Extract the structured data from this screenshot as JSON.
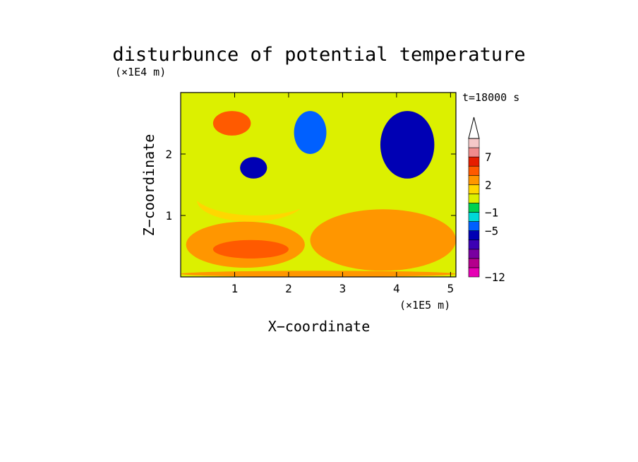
{
  "chart_data": {
    "type": "heatmap",
    "title": "disturbunce of potential temperature",
    "time_label": "t=18000 s",
    "xlabel": "X−coordinate",
    "ylabel": "Z−coordinate",
    "x_unit": "(×1E5 m)",
    "y_unit": "(×1E4 m)",
    "xlim": [
      0,
      5.1
    ],
    "ylim": [
      0,
      3.0
    ],
    "x_ticks": [
      1,
      2,
      3,
      4,
      5
    ],
    "x_tick_labels": [
      "1",
      "2",
      "3",
      "4",
      "5"
    ],
    "y_ticks": [
      1,
      2
    ],
    "y_tick_labels": [
      "1",
      "2"
    ],
    "colorbar": {
      "levels": [
        -12,
        -10,
        -8,
        -6,
        -5,
        -3,
        -1,
        0,
        1,
        2,
        3,
        5,
        7,
        9
      ],
      "colors": [
        "#e600b4",
        "#b4008c",
        "#7800a0",
        "#3c00b4",
        "#0000b4",
        "#0060ff",
        "#00d8d8",
        "#00d250",
        "#dcf000",
        "#ffd700",
        "#ff9600",
        "#ff5a00",
        "#e61e00",
        "#f08c8c",
        "#f5c8c8"
      ],
      "tick_labels": [
        "7",
        "2",
        "−1",
        "−5",
        "−12"
      ],
      "tick_values": [
        7,
        2,
        -1,
        -5,
        -12
      ],
      "extend_max": true
    },
    "regions": [
      {
        "x": [
          0.0,
          5.1
        ],
        "z": [
          0.0,
          0.1
        ],
        "value": 2.2
      },
      {
        "x": [
          0.1,
          2.3
        ],
        "z": [
          0.15,
          0.9
        ],
        "value": 2.4
      },
      {
        "x": [
          0.6,
          2.0
        ],
        "z": [
          0.3,
          0.6
        ],
        "value": 3.5
      },
      {
        "x": [
          2.4,
          5.1
        ],
        "z": [
          0.1,
          1.1
        ],
        "value": 2.0
      },
      {
        "x": [
          0.3,
          2.3
        ],
        "z": [
          0.9,
          1.6
        ],
        "value": 1.0
      },
      {
        "x": [
          0.2,
          2.6
        ],
        "z": [
          1.0,
          1.8
        ],
        "value": 0.4
      },
      {
        "x": [
          1.1,
          1.6
        ],
        "z": [
          1.6,
          1.95
        ],
        "value": -5.5
      },
      {
        "x": [
          0.6,
          1.3
        ],
        "z": [
          2.3,
          2.7
        ],
        "value": 3.2
      },
      {
        "x": [
          3.7,
          4.7
        ],
        "z": [
          1.6,
          2.7
        ],
        "value": -5.2
      },
      {
        "x": [
          2.1,
          2.7
        ],
        "z": [
          2.0,
          2.7
        ],
        "value": -5.0
      }
    ]
  }
}
